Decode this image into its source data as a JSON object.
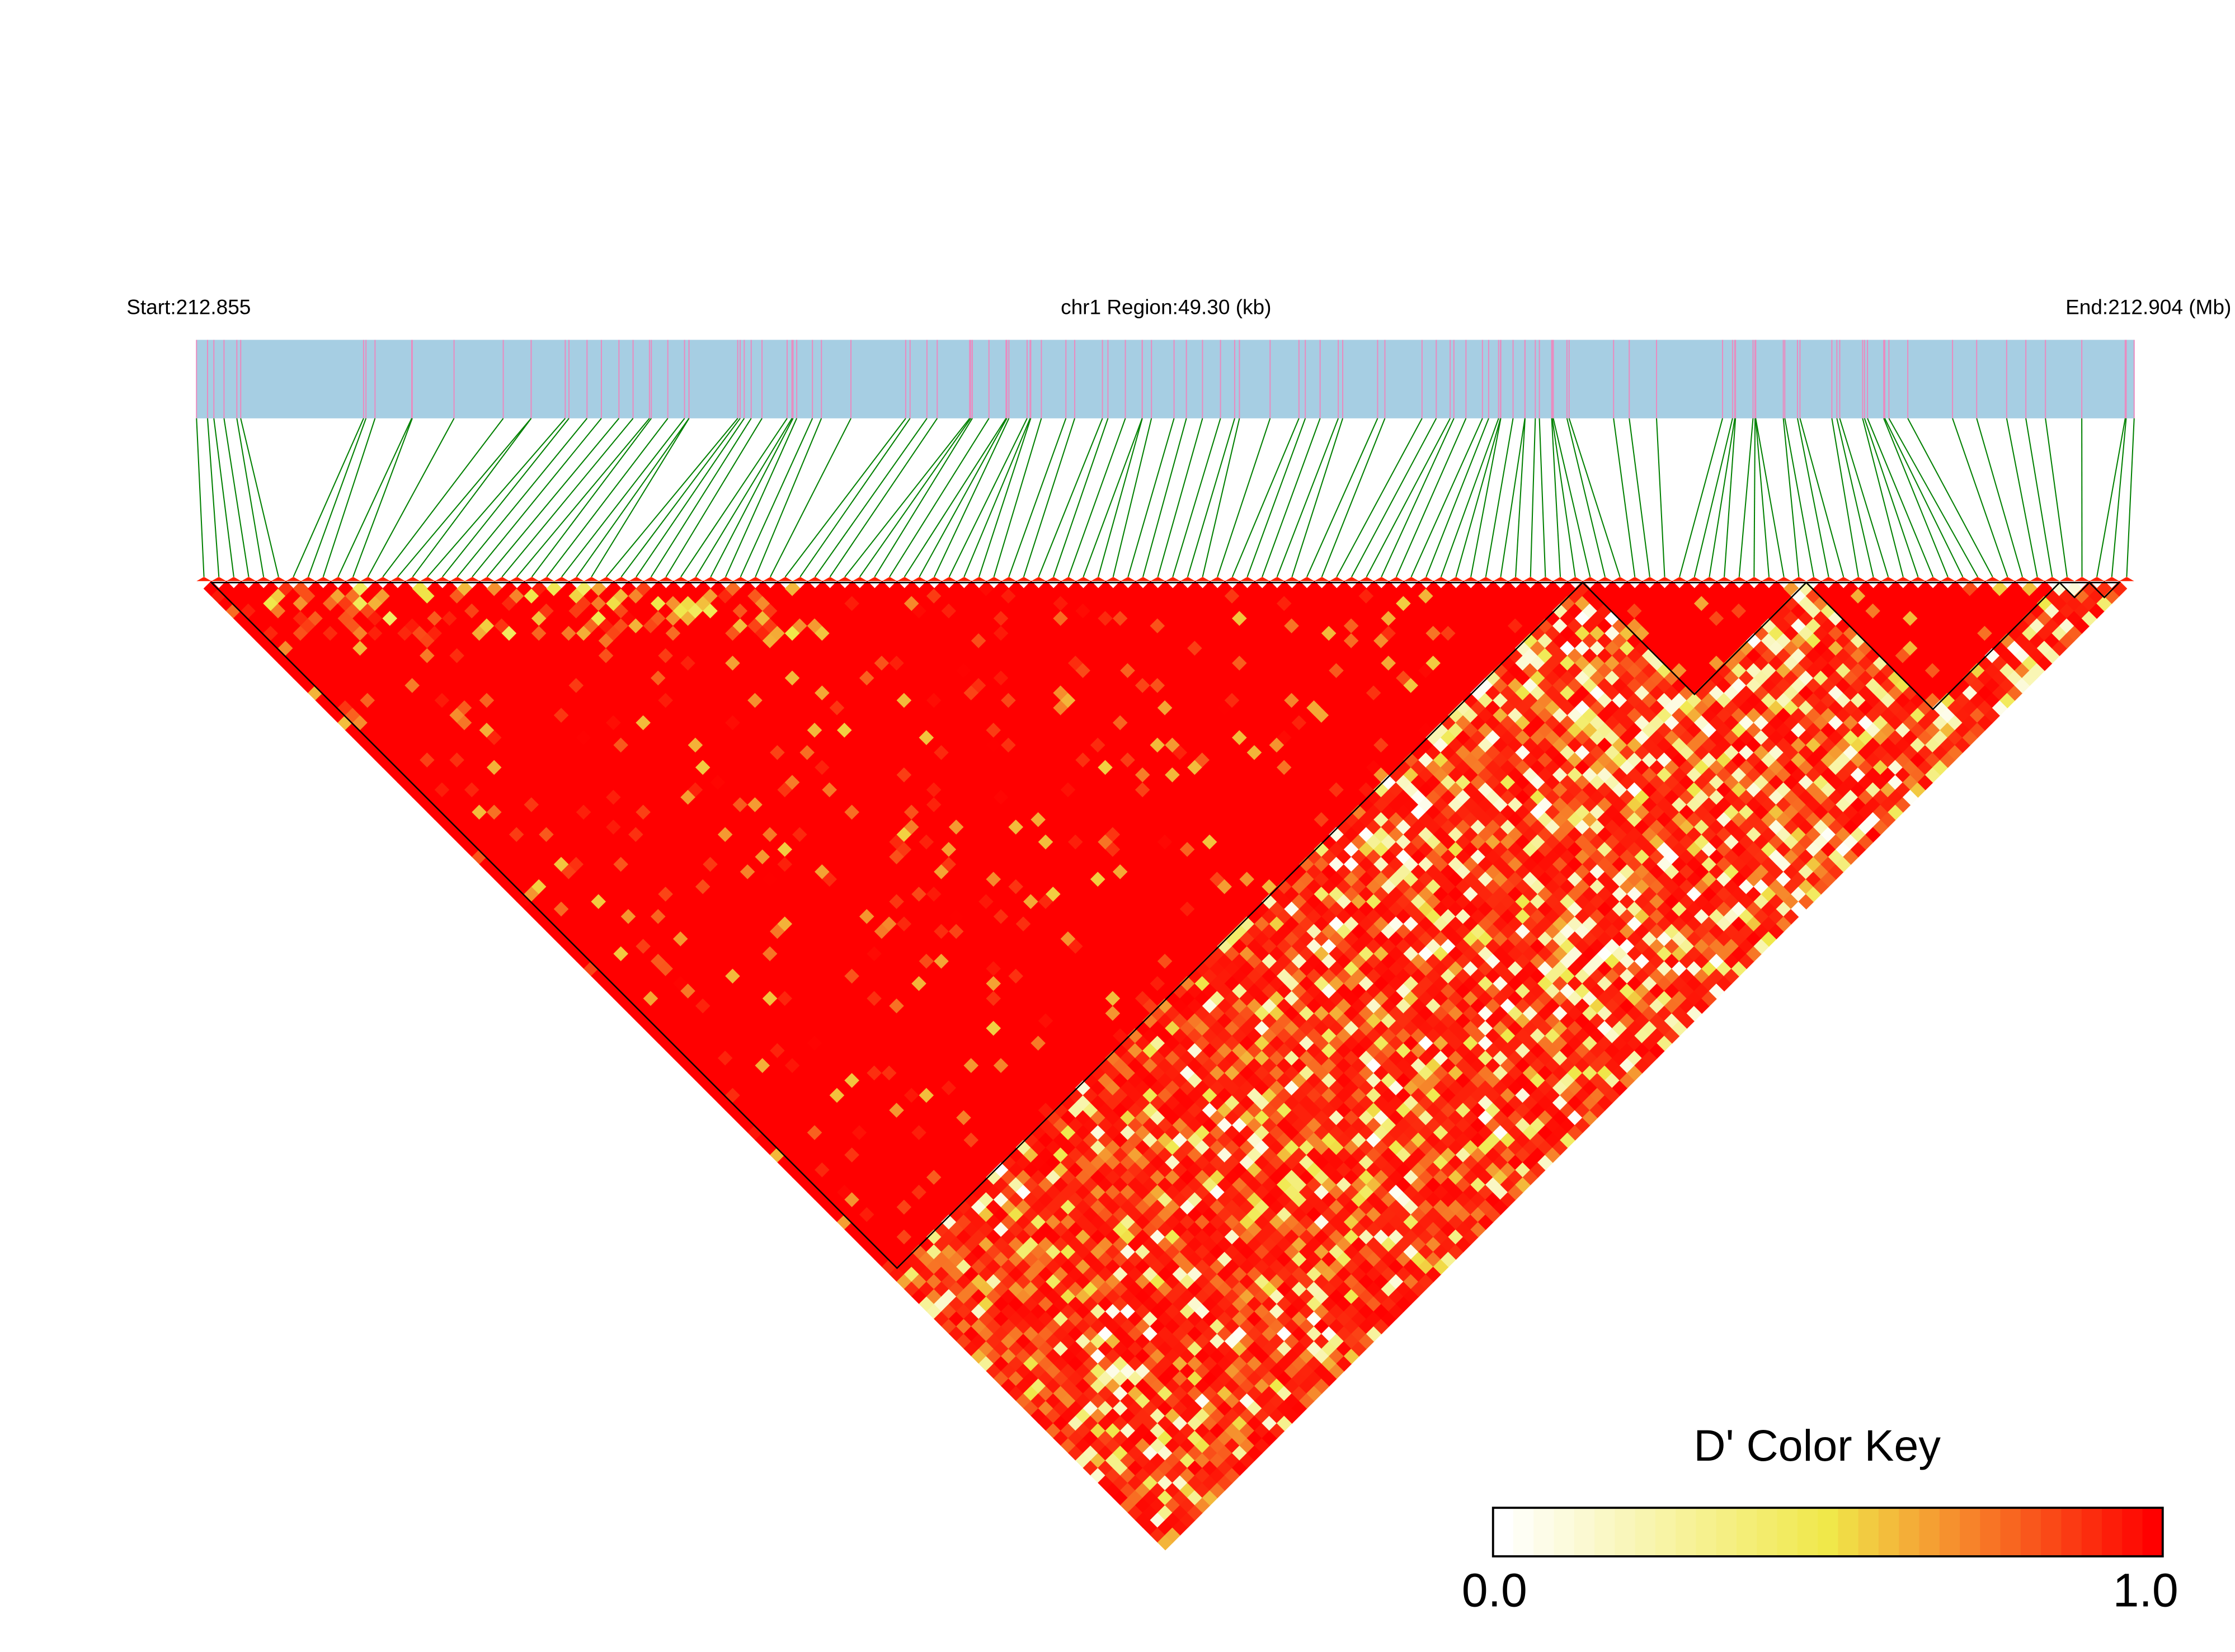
{
  "chart_data": {
    "type": "heatmap",
    "subtype": "LD triangle heatmap",
    "header": {
      "start_label": "Start:212.855",
      "region_label": "chr1 Region:49.30 (kb)",
      "end_label": "End:212.904 (Mb)"
    },
    "chromosome": "chr1",
    "start_mb": 212.855,
    "end_mb": 212.904,
    "region_kb": 49.3,
    "metric": "D'",
    "color_key": {
      "title": "D' Color Key",
      "min_label": "0.0",
      "max_label": "1.0",
      "range": [
        0.0,
        1.0
      ],
      "stops": [
        "#ffffff",
        "#f0e84a",
        "#ff0000"
      ]
    },
    "colors": {
      "gene_bar": "#a6cee3",
      "snp_marker": "#e88cc0",
      "snp_link": "#008000",
      "block_outline": "#000000"
    }
  }
}
